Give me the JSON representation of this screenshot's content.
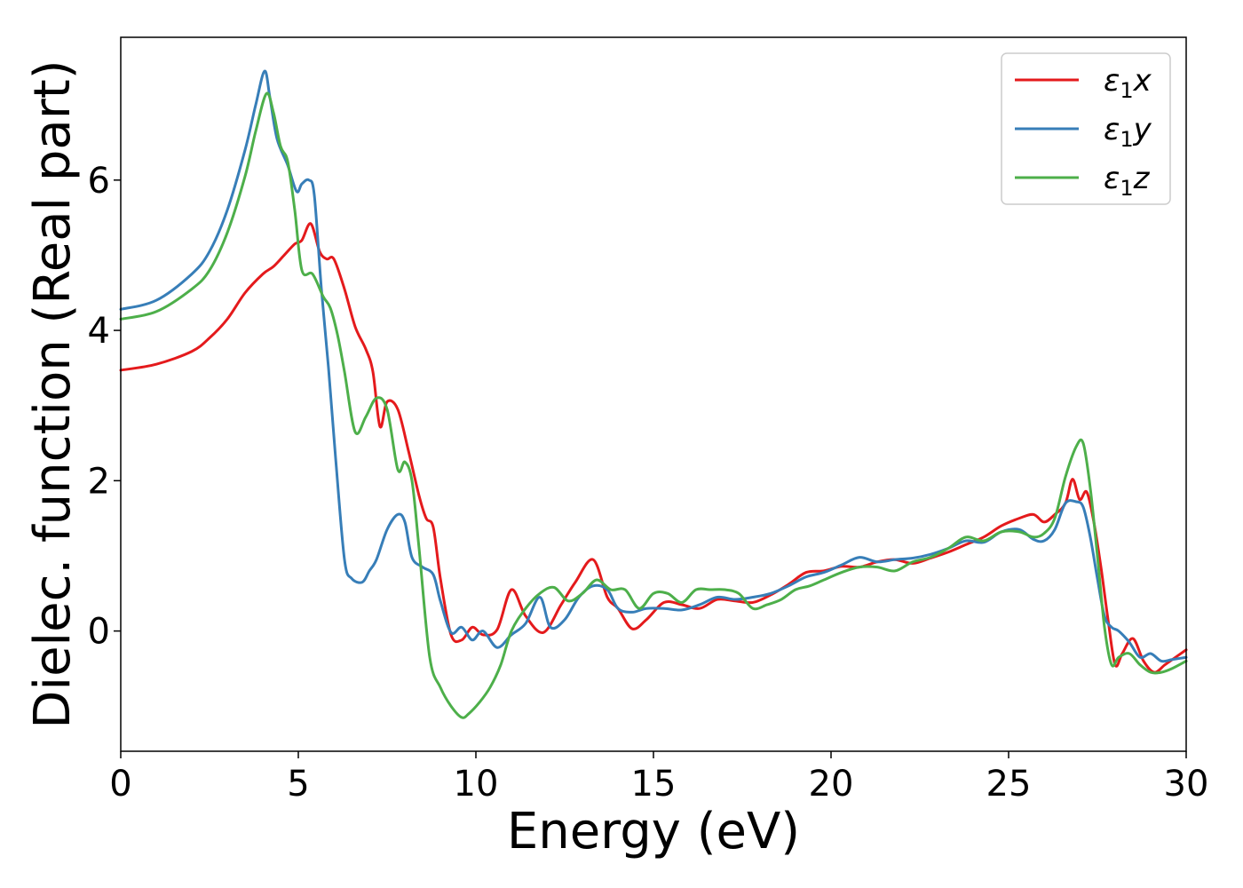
{
  "chart_data": {
    "type": "line",
    "title": "",
    "xlabel": "Energy (eV)",
    "ylabel": "Dielec. function (Real part)",
    "xlim": [
      0,
      30
    ],
    "ylim": [
      -1.6,
      7.9
    ],
    "xticks": [
      0,
      5,
      10,
      15,
      20,
      25,
      30
    ],
    "yticks": [
      0,
      2,
      4,
      6
    ],
    "grid": false,
    "legend_position": "top-right",
    "series": [
      {
        "name": "ε₁x",
        "legend_base": "ε",
        "legend_sub": "1",
        "legend_suffix": "x",
        "color": "#e41a1c",
        "x": [
          0,
          1,
          2,
          2.5,
          3,
          3.5,
          4,
          4.3,
          4.6,
          4.9,
          5.1,
          5.35,
          5.6,
          5.8,
          6.0,
          6.3,
          6.6,
          6.9,
          7.1,
          7.3,
          7.5,
          7.8,
          8.1,
          8.4,
          8.6,
          8.8,
          9.0,
          9.3,
          9.6,
          9.9,
          10.2,
          10.6,
          11.0,
          11.4,
          11.9,
          12.4,
          12.8,
          13.3,
          13.7,
          14.0,
          14.4,
          14.8,
          15.3,
          15.8,
          16.3,
          16.8,
          17.3,
          17.8,
          18.3,
          18.8,
          19.3,
          19.8,
          20.3,
          20.8,
          21.3,
          21.8,
          22.3,
          22.8,
          23.3,
          23.8,
          24.3,
          24.8,
          25.3,
          25.7,
          26.0,
          26.3,
          26.6,
          26.8,
          27.0,
          27.2,
          27.4,
          27.6,
          27.8,
          28.0,
          28.2,
          28.5,
          28.8,
          29.1,
          29.4,
          29.7,
          30.0
        ],
        "y": [
          3.47,
          3.55,
          3.72,
          3.9,
          4.15,
          4.5,
          4.75,
          4.85,
          5.0,
          5.15,
          5.2,
          5.42,
          5.05,
          4.95,
          4.95,
          4.55,
          4.05,
          3.75,
          3.45,
          2.72,
          3.05,
          2.95,
          2.4,
          1.8,
          1.5,
          1.38,
          0.7,
          -0.05,
          -0.12,
          0.05,
          -0.05,
          0.02,
          0.55,
          0.2,
          -0.02,
          0.35,
          0.65,
          0.95,
          0.45,
          0.3,
          0.03,
          0.15,
          0.38,
          0.35,
          0.3,
          0.42,
          0.4,
          0.38,
          0.48,
          0.62,
          0.78,
          0.8,
          0.86,
          0.85,
          0.92,
          0.95,
          0.9,
          0.97,
          1.05,
          1.15,
          1.25,
          1.4,
          1.5,
          1.55,
          1.45,
          1.55,
          1.7,
          2.02,
          1.75,
          1.85,
          1.45,
          0.85,
          0.15,
          -0.45,
          -0.3,
          -0.1,
          -0.4,
          -0.55,
          -0.45,
          -0.35,
          -0.25
        ]
      },
      {
        "name": "ε₁y",
        "legend_base": "ε",
        "legend_sub": "1",
        "legend_suffix": "y",
        "color": "#377eb8",
        "x": [
          0,
          1,
          2,
          2.5,
          3,
          3.5,
          3.8,
          4.05,
          4.2,
          4.4,
          4.7,
          4.95,
          5.1,
          5.3,
          5.45,
          5.65,
          5.85,
          6.05,
          6.3,
          6.5,
          6.8,
          7.0,
          7.2,
          7.5,
          7.8,
          8.0,
          8.2,
          8.5,
          8.8,
          9.0,
          9.3,
          9.6,
          9.9,
          10.2,
          10.6,
          11.0,
          11.4,
          11.8,
          12.1,
          12.5,
          12.9,
          13.3,
          13.7,
          14.0,
          14.4,
          14.8,
          15.3,
          15.8,
          16.3,
          16.8,
          17.3,
          17.8,
          18.3,
          18.8,
          19.3,
          19.8,
          20.3,
          20.8,
          21.3,
          21.8,
          22.3,
          22.8,
          23.3,
          23.8,
          24.3,
          24.8,
          25.3,
          25.7,
          26.0,
          26.3,
          26.6,
          26.9,
          27.1,
          27.3,
          27.5,
          27.7,
          27.9,
          28.1,
          28.4,
          28.7,
          29.0,
          29.3,
          29.6,
          30.0
        ],
        "y": [
          4.28,
          4.4,
          4.75,
          5.05,
          5.6,
          6.4,
          7.0,
          7.45,
          7.1,
          6.55,
          6.2,
          5.85,
          5.95,
          6.0,
          5.8,
          4.55,
          3.5,
          2.3,
          0.95,
          0.7,
          0.65,
          0.8,
          0.95,
          1.35,
          1.55,
          1.45,
          0.98,
          0.85,
          0.75,
          0.4,
          -0.02,
          0.05,
          -0.12,
          0.0,
          -0.22,
          -0.05,
          0.1,
          0.45,
          0.05,
          0.15,
          0.45,
          0.6,
          0.55,
          0.3,
          0.25,
          0.3,
          0.3,
          0.28,
          0.35,
          0.45,
          0.42,
          0.45,
          0.5,
          0.6,
          0.72,
          0.78,
          0.88,
          0.98,
          0.92,
          0.95,
          0.97,
          1.02,
          1.1,
          1.2,
          1.18,
          1.32,
          1.35,
          1.22,
          1.2,
          1.35,
          1.7,
          1.72,
          1.65,
          1.25,
          0.7,
          0.2,
          0.05,
          0.0,
          -0.15,
          -0.35,
          -0.3,
          -0.4,
          -0.38,
          -0.35
        ]
      },
      {
        "name": "ε₁z",
        "legend_base": "ε",
        "legend_sub": "1",
        "legend_suffix": "z",
        "color": "#4daf4a",
        "x": [
          0,
          1,
          2,
          2.5,
          3,
          3.5,
          3.8,
          4.1,
          4.3,
          4.5,
          4.7,
          4.9,
          5.1,
          5.4,
          5.7,
          5.9,
          6.1,
          6.3,
          6.6,
          6.9,
          7.2,
          7.5,
          7.8,
          8.0,
          8.2,
          8.4,
          8.7,
          9.0,
          9.3,
          9.6,
          9.8,
          10.1,
          10.4,
          10.7,
          11.0,
          11.4,
          11.8,
          12.2,
          12.6,
          13.0,
          13.4,
          13.8,
          14.2,
          14.6,
          15.0,
          15.4,
          15.8,
          16.2,
          16.6,
          17.0,
          17.4,
          17.8,
          18.2,
          18.6,
          19.0,
          19.4,
          19.8,
          20.3,
          20.8,
          21.3,
          21.8,
          22.3,
          22.8,
          23.3,
          23.8,
          24.3,
          24.8,
          25.3,
          25.7,
          26.0,
          26.3,
          26.6,
          26.9,
          27.1,
          27.3,
          27.5,
          27.7,
          27.9,
          28.1,
          28.4,
          28.7,
          29.0,
          29.3,
          29.6,
          30.0
        ],
        "y": [
          4.15,
          4.25,
          4.55,
          4.8,
          5.3,
          6.05,
          6.65,
          7.15,
          6.9,
          6.45,
          6.25,
          5.6,
          4.8,
          4.75,
          4.45,
          4.3,
          3.95,
          3.45,
          2.65,
          2.85,
          3.1,
          2.95,
          2.15,
          2.25,
          2.0,
          1.1,
          -0.35,
          -0.75,
          -1.0,
          -1.15,
          -1.1,
          -0.95,
          -0.75,
          -0.45,
          0.0,
          0.3,
          0.5,
          0.58,
          0.4,
          0.5,
          0.68,
          0.55,
          0.55,
          0.3,
          0.5,
          0.5,
          0.38,
          0.55,
          0.55,
          0.55,
          0.5,
          0.3,
          0.35,
          0.42,
          0.55,
          0.6,
          0.68,
          0.78,
          0.85,
          0.85,
          0.8,
          0.92,
          0.98,
          1.1,
          1.25,
          1.2,
          1.32,
          1.32,
          1.25,
          1.3,
          1.5,
          2.05,
          2.45,
          2.5,
          1.9,
          1.0,
          0.05,
          -0.45,
          -0.35,
          -0.3,
          -0.45,
          -0.55,
          -0.55,
          -0.5,
          -0.4
        ]
      }
    ]
  }
}
